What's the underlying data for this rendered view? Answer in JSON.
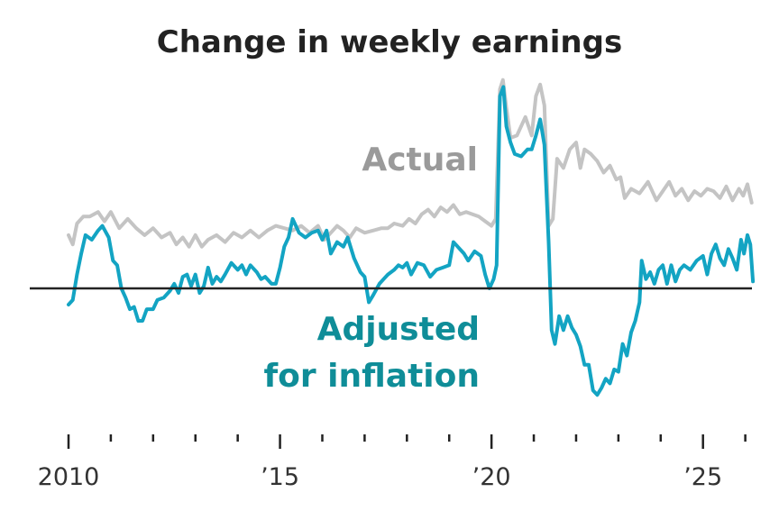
{
  "chart_data": {
    "type": "line",
    "title": "Change in weekly earnings",
    "xlabel": "",
    "ylabel": "",
    "x_range": [
      2010,
      2026.2
    ],
    "x_ticks": [
      {
        "value": 2010,
        "label": "2010"
      },
      {
        "value": 2011,
        "label": ""
      },
      {
        "value": 2012,
        "label": ""
      },
      {
        "value": 2013,
        "label": ""
      },
      {
        "value": 2014,
        "label": ""
      },
      {
        "value": 2015,
        "label": "’15"
      },
      {
        "value": 2016,
        "label": ""
      },
      {
        "value": 2017,
        "label": ""
      },
      {
        "value": 2018,
        "label": ""
      },
      {
        "value": 2019,
        "label": ""
      },
      {
        "value": 2020,
        "label": "’20"
      },
      {
        "value": 2021,
        "label": ""
      },
      {
        "value": 2022,
        "label": ""
      },
      {
        "value": 2023,
        "label": ""
      },
      {
        "value": 2024,
        "label": ""
      },
      {
        "value": 2025,
        "label": "’25"
      },
      {
        "value": 2026,
        "label": ""
      }
    ],
    "y_range": [
      -6,
      9
    ],
    "zero_line": true,
    "grid": false,
    "legend": "inline labels",
    "series": [
      {
        "name": "Actual",
        "color": "#c4c4c4",
        "label_color": "#9a9a9a",
        "points": [
          [
            2010.0,
            2.3
          ],
          [
            2010.1,
            1.9
          ],
          [
            2010.2,
            2.8
          ],
          [
            2010.35,
            3.1
          ],
          [
            2010.5,
            3.1
          ],
          [
            2010.7,
            3.3
          ],
          [
            2010.85,
            2.9
          ],
          [
            2011.0,
            3.3
          ],
          [
            2011.2,
            2.6
          ],
          [
            2011.4,
            3.0
          ],
          [
            2011.6,
            2.6
          ],
          [
            2011.8,
            2.3
          ],
          [
            2012.0,
            2.6
          ],
          [
            2012.2,
            2.2
          ],
          [
            2012.4,
            2.4
          ],
          [
            2012.55,
            1.9
          ],
          [
            2012.7,
            2.2
          ],
          [
            2012.85,
            1.8
          ],
          [
            2013.0,
            2.3
          ],
          [
            2013.15,
            1.8
          ],
          [
            2013.3,
            2.1
          ],
          [
            2013.5,
            2.3
          ],
          [
            2013.7,
            2.0
          ],
          [
            2013.9,
            2.4
          ],
          [
            2014.1,
            2.2
          ],
          [
            2014.3,
            2.5
          ],
          [
            2014.5,
            2.2
          ],
          [
            2014.7,
            2.5
          ],
          [
            2014.9,
            2.7
          ],
          [
            2015.1,
            2.6
          ],
          [
            2015.3,
            2.5
          ],
          [
            2015.5,
            2.7
          ],
          [
            2015.7,
            2.4
          ],
          [
            2015.9,
            2.7
          ],
          [
            2016.05,
            2.1
          ],
          [
            2016.2,
            2.4
          ],
          [
            2016.35,
            2.7
          ],
          [
            2016.5,
            2.5
          ],
          [
            2016.65,
            2.2
          ],
          [
            2016.8,
            2.6
          ],
          [
            2017.0,
            2.4
          ],
          [
            2017.2,
            2.5
          ],
          [
            2017.4,
            2.6
          ],
          [
            2017.55,
            2.6
          ],
          [
            2017.7,
            2.8
          ],
          [
            2017.9,
            2.7
          ],
          [
            2018.05,
            3.0
          ],
          [
            2018.2,
            2.8
          ],
          [
            2018.35,
            3.2
          ],
          [
            2018.5,
            3.4
          ],
          [
            2018.65,
            3.1
          ],
          [
            2018.8,
            3.5
          ],
          [
            2018.95,
            3.3
          ],
          [
            2019.1,
            3.6
          ],
          [
            2019.25,
            3.2
          ],
          [
            2019.4,
            3.3
          ],
          [
            2019.55,
            3.2
          ],
          [
            2019.7,
            3.1
          ],
          [
            2019.85,
            2.9
          ],
          [
            2020.0,
            2.7
          ],
          [
            2020.1,
            3.0
          ],
          [
            2020.2,
            8.6
          ],
          [
            2020.27,
            9.0
          ],
          [
            2020.35,
            7.8
          ],
          [
            2020.45,
            6.5
          ],
          [
            2020.6,
            6.6
          ],
          [
            2020.8,
            7.4
          ],
          [
            2020.95,
            6.6
          ],
          [
            2021.05,
            8.3
          ],
          [
            2021.15,
            8.8
          ],
          [
            2021.25,
            7.9
          ],
          [
            2021.35,
            2.7
          ],
          [
            2021.45,
            3.0
          ],
          [
            2021.55,
            5.6
          ],
          [
            2021.7,
            5.2
          ],
          [
            2021.85,
            6.0
          ],
          [
            2022.0,
            6.3
          ],
          [
            2022.1,
            5.2
          ],
          [
            2022.2,
            6.0
          ],
          [
            2022.35,
            5.8
          ],
          [
            2022.5,
            5.5
          ],
          [
            2022.65,
            5.0
          ],
          [
            2022.8,
            5.3
          ],
          [
            2022.95,
            4.7
          ],
          [
            2023.05,
            4.8
          ],
          [
            2023.15,
            3.9
          ],
          [
            2023.3,
            4.3
          ],
          [
            2023.5,
            4.1
          ],
          [
            2023.7,
            4.6
          ],
          [
            2023.9,
            3.8
          ],
          [
            2024.05,
            4.2
          ],
          [
            2024.2,
            4.6
          ],
          [
            2024.35,
            4.0
          ],
          [
            2024.5,
            4.3
          ],
          [
            2024.65,
            3.8
          ],
          [
            2024.8,
            4.2
          ],
          [
            2024.95,
            4.0
          ],
          [
            2025.1,
            4.3
          ],
          [
            2025.25,
            4.2
          ],
          [
            2025.4,
            3.9
          ],
          [
            2025.55,
            4.4
          ],
          [
            2025.7,
            3.8
          ],
          [
            2025.85,
            4.3
          ],
          [
            2025.95,
            4.0
          ],
          [
            2026.05,
            4.5
          ],
          [
            2026.15,
            3.7
          ]
        ]
      },
      {
        "name": "Adjusted\nfor inflation",
        "color": "#13a4c3",
        "label_color": "#0f8d98",
        "points": [
          [
            2010.0,
            -0.7
          ],
          [
            2010.1,
            -0.5
          ],
          [
            2010.2,
            0.6
          ],
          [
            2010.3,
            1.5
          ],
          [
            2010.4,
            2.3
          ],
          [
            2010.55,
            2.1
          ],
          [
            2010.7,
            2.5
          ],
          [
            2010.8,
            2.7
          ],
          [
            2010.95,
            2.2
          ],
          [
            2011.05,
            1.2
          ],
          [
            2011.15,
            1.0
          ],
          [
            2011.25,
            0.0
          ],
          [
            2011.35,
            -0.4
          ],
          [
            2011.45,
            -0.9
          ],
          [
            2011.55,
            -0.8
          ],
          [
            2011.65,
            -1.4
          ],
          [
            2011.75,
            -1.4
          ],
          [
            2011.85,
            -0.9
          ],
          [
            2012.0,
            -0.9
          ],
          [
            2012.1,
            -0.5
          ],
          [
            2012.25,
            -0.4
          ],
          [
            2012.4,
            -0.1
          ],
          [
            2012.5,
            0.2
          ],
          [
            2012.6,
            -0.2
          ],
          [
            2012.7,
            0.5
          ],
          [
            2012.8,
            0.6
          ],
          [
            2012.9,
            0.1
          ],
          [
            2013.0,
            0.6
          ],
          [
            2013.1,
            -0.2
          ],
          [
            2013.2,
            0.1
          ],
          [
            2013.3,
            0.9
          ],
          [
            2013.4,
            0.2
          ],
          [
            2013.5,
            0.5
          ],
          [
            2013.6,
            0.3
          ],
          [
            2013.7,
            0.6
          ],
          [
            2013.85,
            1.1
          ],
          [
            2014.0,
            0.8
          ],
          [
            2014.1,
            1.0
          ],
          [
            2014.2,
            0.6
          ],
          [
            2014.3,
            1.0
          ],
          [
            2014.45,
            0.7
          ],
          [
            2014.55,
            0.4
          ],
          [
            2014.65,
            0.5
          ],
          [
            2014.8,
            0.2
          ],
          [
            2014.9,
            0.2
          ],
          [
            2015.0,
            0.9
          ],
          [
            2015.1,
            1.8
          ],
          [
            2015.2,
            2.2
          ],
          [
            2015.3,
            3.0
          ],
          [
            2015.45,
            2.4
          ],
          [
            2015.6,
            2.2
          ],
          [
            2015.75,
            2.4
          ],
          [
            2015.9,
            2.5
          ],
          [
            2016.0,
            2.1
          ],
          [
            2016.1,
            2.5
          ],
          [
            2016.2,
            1.5
          ],
          [
            2016.35,
            2.0
          ],
          [
            2016.5,
            1.8
          ],
          [
            2016.6,
            2.2
          ],
          [
            2016.75,
            1.3
          ],
          [
            2016.9,
            0.7
          ],
          [
            2017.0,
            0.5
          ],
          [
            2017.1,
            -0.6
          ],
          [
            2017.2,
            -0.3
          ],
          [
            2017.35,
            0.2
          ],
          [
            2017.45,
            0.4
          ],
          [
            2017.55,
            0.6
          ],
          [
            2017.7,
            0.8
          ],
          [
            2017.8,
            1.0
          ],
          [
            2017.9,
            0.9
          ],
          [
            2018.0,
            1.1
          ],
          [
            2018.1,
            0.6
          ],
          [
            2018.25,
            1.1
          ],
          [
            2018.4,
            1.0
          ],
          [
            2018.55,
            0.5
          ],
          [
            2018.7,
            0.8
          ],
          [
            2018.85,
            0.9
          ],
          [
            2019.0,
            1.0
          ],
          [
            2019.1,
            2.0
          ],
          [
            2019.2,
            1.8
          ],
          [
            2019.35,
            1.5
          ],
          [
            2019.45,
            1.2
          ],
          [
            2019.6,
            1.6
          ],
          [
            2019.75,
            1.4
          ],
          [
            2019.85,
            0.6
          ],
          [
            2019.95,
            0.0
          ],
          [
            2020.05,
            0.4
          ],
          [
            2020.12,
            1.0
          ],
          [
            2020.2,
            8.3
          ],
          [
            2020.28,
            8.7
          ],
          [
            2020.35,
            7.0
          ],
          [
            2020.45,
            6.3
          ],
          [
            2020.55,
            5.8
          ],
          [
            2020.7,
            5.7
          ],
          [
            2020.85,
            6.0
          ],
          [
            2020.95,
            6.0
          ],
          [
            2021.05,
            6.6
          ],
          [
            2021.15,
            7.3
          ],
          [
            2021.25,
            6.2
          ],
          [
            2021.35,
            2.0
          ],
          [
            2021.42,
            -1.8
          ],
          [
            2021.5,
            -2.4
          ],
          [
            2021.6,
            -1.2
          ],
          [
            2021.7,
            -1.8
          ],
          [
            2021.8,
            -1.2
          ],
          [
            2021.9,
            -1.7
          ],
          [
            2022.0,
            -2.0
          ],
          [
            2022.1,
            -2.5
          ],
          [
            2022.2,
            -3.3
          ],
          [
            2022.3,
            -3.3
          ],
          [
            2022.4,
            -4.4
          ],
          [
            2022.5,
            -4.6
          ],
          [
            2022.6,
            -4.3
          ],
          [
            2022.7,
            -3.9
          ],
          [
            2022.8,
            -4.1
          ],
          [
            2022.9,
            -3.5
          ],
          [
            2023.0,
            -3.6
          ],
          [
            2023.1,
            -2.4
          ],
          [
            2023.2,
            -2.9
          ],
          [
            2023.3,
            -1.9
          ],
          [
            2023.4,
            -1.4
          ],
          [
            2023.5,
            -0.6
          ],
          [
            2023.55,
            1.2
          ],
          [
            2023.65,
            0.4
          ],
          [
            2023.75,
            0.7
          ],
          [
            2023.85,
            0.2
          ],
          [
            2023.95,
            0.8
          ],
          [
            2024.05,
            1.0
          ],
          [
            2024.15,
            0.2
          ],
          [
            2024.25,
            1.0
          ],
          [
            2024.35,
            0.3
          ],
          [
            2024.45,
            0.8
          ],
          [
            2024.55,
            1.0
          ],
          [
            2024.7,
            0.8
          ],
          [
            2024.85,
            1.2
          ],
          [
            2025.0,
            1.4
          ],
          [
            2025.1,
            0.6
          ],
          [
            2025.2,
            1.5
          ],
          [
            2025.3,
            1.9
          ],
          [
            2025.4,
            1.3
          ],
          [
            2025.5,
            1.0
          ],
          [
            2025.6,
            1.7
          ],
          [
            2025.7,
            1.3
          ],
          [
            2025.8,
            0.8
          ],
          [
            2025.9,
            2.1
          ],
          [
            2025.97,
            1.5
          ],
          [
            2026.05,
            2.3
          ],
          [
            2026.12,
            1.9
          ],
          [
            2026.18,
            0.3
          ]
        ]
      }
    ]
  }
}
